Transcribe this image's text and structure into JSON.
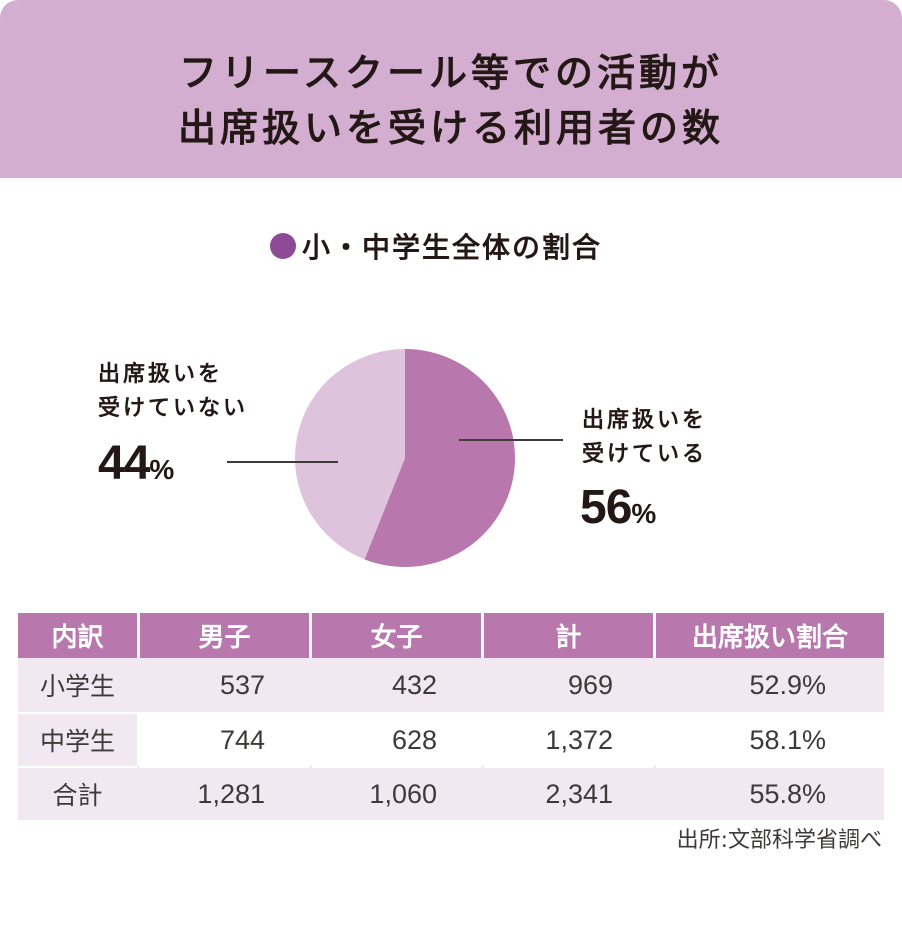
{
  "title": {
    "line1": "フリースクール等での活動が",
    "line2": "出席扱いを受ける利用者の数"
  },
  "colors": {
    "header_band": "#d4aed0",
    "legend_dot": "#8e4a97",
    "slice_received": "#b878ad",
    "slice_not_received": "#dfc3dc",
    "table_header": "#b878ad",
    "table_row_shade": "#f1e8f1"
  },
  "chart_data": {
    "type": "pie",
    "title": "小・中学生全体の割合",
    "slices": [
      {
        "label_line1": "出席扱いを",
        "label_line2": "受けている",
        "value": 56,
        "display": "56",
        "unit": "%",
        "color": "#b878ad"
      },
      {
        "label_line1": "出席扱いを",
        "label_line2": "受けていない",
        "value": 44,
        "display": "44",
        "unit": "%",
        "color": "#dfc3dc"
      }
    ],
    "start_angle": "12 o'clock, clockwise",
    "table": {
      "type": "table",
      "columns": [
        "内訳",
        "男子",
        "女子",
        "計",
        "出席扱い割合"
      ],
      "rows": [
        [
          "小学生",
          "537",
          "432",
          "969",
          "52.9%"
        ],
        [
          "中学生",
          "744",
          "628",
          "1,372",
          "58.1%"
        ],
        [
          "合計",
          "1,281",
          "1,060",
          "2,341",
          "55.8%"
        ]
      ]
    }
  },
  "source": "出所:文部科学省調べ"
}
